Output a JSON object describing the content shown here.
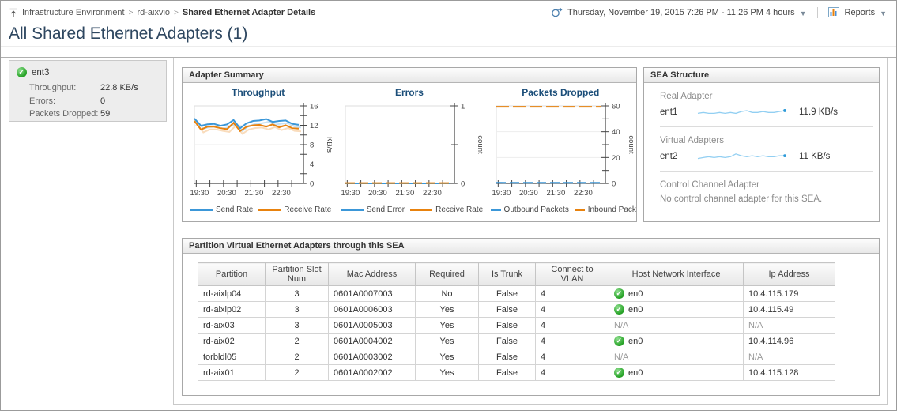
{
  "header": {
    "breadcrumb": {
      "icon": "up-to-top-icon",
      "items": [
        {
          "label": "Infrastructure Environment"
        },
        {
          "label": "rd-aixvio"
        },
        {
          "label": "Shared Ethernet Adapter Details"
        }
      ]
    },
    "time_range": {
      "icon": "time-range-icon",
      "label": "Thursday, November 19, 2015 7:26 PM - 11:26 PM 4 hours"
    },
    "reports": {
      "icon": "reports-icon",
      "label": "Reports"
    }
  },
  "page_title": "All Shared Ethernet Adapters (1)",
  "adapter_tile": {
    "status_icon": "green-check-icon",
    "name": "ent3",
    "metrics": [
      {
        "label": "Throughput:",
        "value": "22.8 KB/s"
      },
      {
        "label": "Errors:",
        "value": "0"
      },
      {
        "label": "Packets Dropped:",
        "value": "59"
      }
    ]
  },
  "adapter_summary": {
    "title": "Adapter Summary"
  },
  "chart_data": [
    {
      "type": "line",
      "title": "Throughput",
      "ylabel": "KB/s",
      "ylim": [
        0,
        16
      ],
      "yticks": [
        0,
        4,
        8,
        12,
        16
      ],
      "yminor": [
        2,
        6,
        10,
        14
      ],
      "xticks": [
        {
          "f": 0.017,
          "label": "19:30"
        },
        {
          "f": 0.142
        },
        {
          "f": 0.267,
          "label": "20:30"
        },
        {
          "f": 0.392
        },
        {
          "f": 0.517,
          "label": "21:30"
        },
        {
          "f": 0.642
        },
        {
          "f": 0.767,
          "label": "22:30"
        },
        {
          "f": 0.892
        }
      ],
      "series": [
        {
          "name": "Send Rate",
          "color": "#3b97d8",
          "shadow": true,
          "values": [
            13.4,
            11.9,
            12.2,
            12.3,
            11.9,
            12.2,
            13.1,
            11.4,
            12.4,
            12.9,
            13.0,
            13.3,
            12.7,
            12.9,
            13.0,
            12.3,
            12.1
          ]
        },
        {
          "name": "Receive Rate",
          "color": "#e8820e",
          "shadow": true,
          "values": [
            12.9,
            11.1,
            11.7,
            11.7,
            11.4,
            11.2,
            12.5,
            10.8,
            11.7,
            12.0,
            12.1,
            11.7,
            12.2,
            11.6,
            12.0,
            11.4,
            11.3
          ]
        }
      ]
    },
    {
      "type": "line",
      "title": "Errors",
      "ylabel": "count",
      "ylim": [
        0,
        1
      ],
      "yticks": [
        0,
        1
      ],
      "yminor": [
        0.5
      ],
      "xticks": [
        {
          "f": 0.017,
          "label": "19:30"
        },
        {
          "f": 0.142
        },
        {
          "f": 0.267,
          "label": "20:30"
        },
        {
          "f": 0.392
        },
        {
          "f": 0.517,
          "label": "21:30"
        },
        {
          "f": 0.642
        },
        {
          "f": 0.767,
          "label": "22:30"
        },
        {
          "f": 0.892
        }
      ],
      "series": [
        {
          "name": "Send Error",
          "color": "#3b97d8",
          "values": [
            0,
            0
          ]
        },
        {
          "name": "Receive Rate",
          "color": "#e8820e",
          "dash": "12 5",
          "values": [
            0.004,
            0.004
          ]
        }
      ]
    },
    {
      "type": "line",
      "title": "Packets Dropped",
      "ylabel": "count",
      "ylim": [
        0,
        60
      ],
      "yticks": [
        0,
        20,
        40,
        60
      ],
      "yminor": [
        10,
        30,
        50
      ],
      "xticks": [
        {
          "f": 0.017,
          "label": "19:30"
        },
        {
          "f": 0.142
        },
        {
          "f": 0.267,
          "label": "20:30"
        },
        {
          "f": 0.392
        },
        {
          "f": 0.517,
          "label": "21:30"
        },
        {
          "f": 0.642
        },
        {
          "f": 0.767,
          "label": "22:30"
        },
        {
          "f": 0.892
        }
      ],
      "series": [
        {
          "name": "Outbound Packets",
          "color": "#3b97d8",
          "dash": "12 5",
          "values": [
            0.5,
            0.5
          ]
        },
        {
          "name": "Inbound Pack",
          "color": "#e8820e",
          "dash": "16 5",
          "values": [
            59.3,
            59.3
          ]
        }
      ]
    }
  ],
  "sea_structure": {
    "title": "SEA Structure",
    "sections": [
      {
        "label": "Real Adapter",
        "adapter": "ent1",
        "value": "11.9 KB/s",
        "spark": [
          4,
          5,
          4,
          4,
          5,
          4,
          5,
          4,
          6,
          7,
          5,
          5,
          6,
          5,
          5,
          6,
          7
        ]
      },
      {
        "label": "Virtual Adapters",
        "adapter": "ent2",
        "value": "11 KB/s",
        "spark": [
          3,
          4,
          5,
          4,
          5,
          4,
          5,
          8,
          6,
          5,
          6,
          5,
          6,
          5,
          5,
          6,
          6
        ]
      },
      {
        "label": "Control Channel Adapter",
        "message": "No control channel adapter for this SEA."
      }
    ]
  },
  "partition_table": {
    "title": "Partition Virtual Ethernet Adapters through this SEA",
    "columns": [
      "Partition",
      "Partition Slot Num",
      "Mac Address",
      "Required",
      "Is Trunk",
      "Connect to VLAN",
      "Host Network Interface",
      "Ip Address"
    ],
    "rows": [
      {
        "partition": "rd-aixlp04",
        "slot": "3",
        "mac": "0601A0007003",
        "required": "No",
        "is_trunk": "False",
        "vlan": "4",
        "host": "en0",
        "host_ok": true,
        "ip": "10.4.115.179"
      },
      {
        "partition": "rd-aixlp02",
        "slot": "3",
        "mac": "0601A0006003",
        "required": "Yes",
        "is_trunk": "False",
        "vlan": "4",
        "host": "en0",
        "host_ok": true,
        "ip": "10.4.115.49"
      },
      {
        "partition": "rd-aix03",
        "slot": "3",
        "mac": "0601A0005003",
        "required": "Yes",
        "is_trunk": "False",
        "vlan": "4",
        "host": "N/A",
        "host_ok": false,
        "ip": "N/A"
      },
      {
        "partition": "rd-aix02",
        "slot": "2",
        "mac": "0601A0004002",
        "required": "Yes",
        "is_trunk": "False",
        "vlan": "4",
        "host": "en0",
        "host_ok": true,
        "ip": "10.4.114.96"
      },
      {
        "partition": "torbldl05",
        "slot": "2",
        "mac": "0601A0003002",
        "required": "Yes",
        "is_trunk": "False",
        "vlan": "4",
        "host": "N/A",
        "host_ok": false,
        "ip": "N/A"
      },
      {
        "partition": "rd-aix01",
        "slot": "2",
        "mac": "0601A0002002",
        "required": "Yes",
        "is_trunk": "False",
        "vlan": "4",
        "host": "en0",
        "host_ok": true,
        "ip": "10.4.115.128"
      }
    ]
  },
  "colors": {
    "accent_blue": "#3b97d8",
    "accent_orange": "#e8820e",
    "spark_blue": "#92cff2",
    "status_green": "#2aa52a",
    "title_navy": "#1b4e79"
  }
}
